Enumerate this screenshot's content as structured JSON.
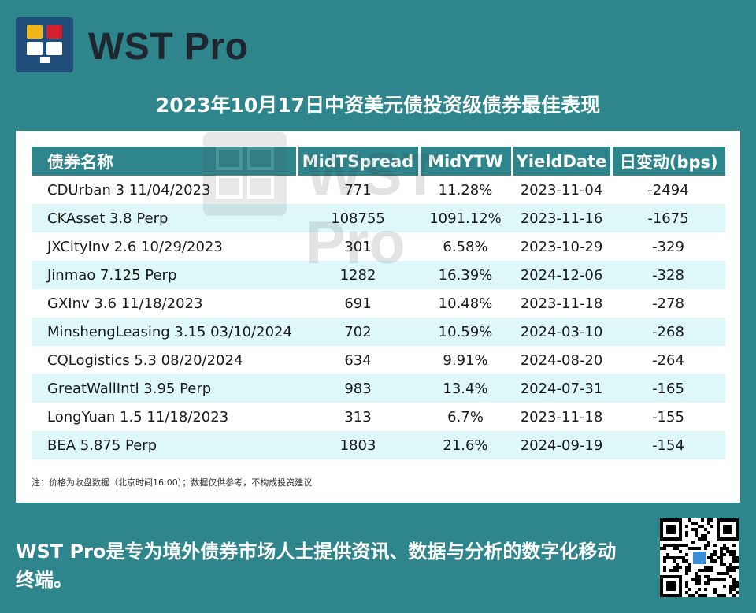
{
  "brand": {
    "name": "WST Pro",
    "logo_icon": "monitor-grid-logo-icon",
    "logo_colors": [
      "#f2b61a",
      "#d4202c",
      "#ffffff",
      "#ffffff"
    ]
  },
  "title": "2023年10月17日中资美元债投资级债券最佳表现",
  "table": {
    "columns": [
      "债券名称",
      "MidTSpread",
      "MidYTW",
      "YieldDate",
      "日变动(bps)"
    ],
    "rows": [
      [
        "CDUrban 3 11/04/2023",
        "771",
        "11.28%",
        "2023-11-04",
        "-2494"
      ],
      [
        "CKAsset 3.8 Perp",
        "108755",
        "1091.12%",
        "2023-11-16",
        "-1675"
      ],
      [
        "JXCityInv 2.6 10/29/2023",
        "301",
        "6.58%",
        "2023-10-29",
        "-329"
      ],
      [
        "Jinmao 7.125 Perp",
        "1282",
        "16.39%",
        "2024-12-06",
        "-328"
      ],
      [
        "GXInv 3.6 11/18/2023",
        "691",
        "10.48%",
        "2023-11-18",
        "-278"
      ],
      [
        "MinshengLeasing 3.15 03/10/2024",
        "702",
        "10.59%",
        "2024-03-10",
        "-268"
      ],
      [
        "CQLogistics 5.3 08/20/2024",
        "634",
        "9.91%",
        "2024-08-20",
        "-264"
      ],
      [
        "GreatWallIntl 3.95 Perp",
        "983",
        "13.4%",
        "2024-07-31",
        "-165"
      ],
      [
        "LongYuan 1.5 11/18/2023",
        "313",
        "6.7%",
        "2023-11-18",
        "-155"
      ],
      [
        "BEA 5.875 Perp",
        "1803",
        "21.6%",
        "2024-09-19",
        "-154"
      ]
    ]
  },
  "note": "注：价格为收盘数据（北京时间16:00）；数据仅供参考，不构成投资建议",
  "watermark": {
    "text": "WST Pro"
  },
  "footer": {
    "text": "WST Pro是专为境外债券市场人士提供资讯、数据与分析的数字化移动终端。"
  },
  "qr": {
    "icon": "qr-code-icon"
  },
  "colors": {
    "background": "#2e858c",
    "header": "#2e858c",
    "row_alt": "#def8f9",
    "brand_text": "#1e2630"
  }
}
